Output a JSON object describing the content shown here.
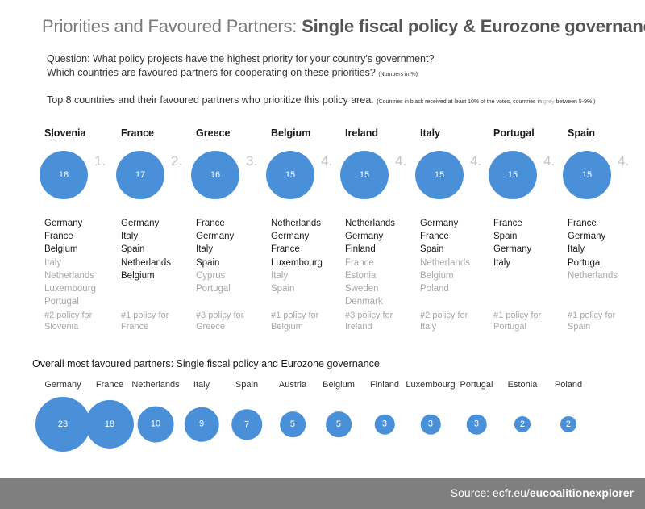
{
  "title": {
    "light": "Priorities and Favoured Partners:",
    "bold": "Single fiscal policy & Eurozone governance"
  },
  "question": {
    "line1": "Question: What policy projects have the highest priority for your country's government?",
    "line2": "Which countries are favoured partners for cooperating on these priorities?",
    "line2_note": "(Numbers in %)"
  },
  "top_line": {
    "text": "Top 8 countries and their favoured partners who prioritize this policy area.",
    "note_pre": "(Countries in black received at least 10% of the votes, countries in ",
    "note_grey": "grey",
    "note_post": " between 5-9%.)"
  },
  "colors": {
    "bubble": "#4a90d9",
    "grey_text": "#a8a8a8",
    "footer": "#7f7f7f"
  },
  "chart_data": [
    {
      "type": "bubble",
      "countries": [
        {
          "name": "Slovenia",
          "value": 18,
          "rank": "1.",
          "partners": [
            {
              "name": "Germany",
              "tier": "black"
            },
            {
              "name": "France",
              "tier": "black"
            },
            {
              "name": "Belgium",
              "tier": "black"
            },
            {
              "name": "Italy",
              "tier": "grey"
            },
            {
              "name": "Netherlands",
              "tier": "grey"
            },
            {
              "name": "Luxembourg",
              "tier": "grey"
            },
            {
              "name": "Portugal",
              "tier": "grey"
            }
          ],
          "policy_line1": "#2 policy for",
          "policy_line2": "Slovenia"
        },
        {
          "name": "France",
          "value": 17,
          "rank": "2.",
          "partners": [
            {
              "name": "Germany",
              "tier": "black"
            },
            {
              "name": "Italy",
              "tier": "black"
            },
            {
              "name": "Spain",
              "tier": "black"
            },
            {
              "name": "Netherlands",
              "tier": "black"
            },
            {
              "name": "Belgium",
              "tier": "black"
            }
          ],
          "policy_line1": "#1 policy for",
          "policy_line2": "France"
        },
        {
          "name": "Greece",
          "value": 16,
          "rank": "3.",
          "partners": [
            {
              "name": "France",
              "tier": "black"
            },
            {
              "name": "Germany",
              "tier": "black"
            },
            {
              "name": "Italy",
              "tier": "black"
            },
            {
              "name": "Spain",
              "tier": "black"
            },
            {
              "name": "Cyprus",
              "tier": "grey"
            },
            {
              "name": "Portugal",
              "tier": "grey"
            }
          ],
          "policy_line1": "#3 policy for",
          "policy_line2": "Greece"
        },
        {
          "name": "Belgium",
          "value": 15,
          "rank": "4.",
          "partners": [
            {
              "name": "Netherlands",
              "tier": "black"
            },
            {
              "name": "Germany",
              "tier": "black"
            },
            {
              "name": "France",
              "tier": "black"
            },
            {
              "name": "Luxembourg",
              "tier": "black"
            },
            {
              "name": "Italy",
              "tier": "grey"
            },
            {
              "name": "Spain",
              "tier": "grey"
            }
          ],
          "policy_line1": "#1 policy for",
          "policy_line2": "Belgium"
        },
        {
          "name": "Ireland",
          "value": 15,
          "rank": "4.",
          "partners": [
            {
              "name": "Netherlands",
              "tier": "black"
            },
            {
              "name": "Germany",
              "tier": "black"
            },
            {
              "name": "Finland",
              "tier": "black"
            },
            {
              "name": "France",
              "tier": "grey"
            },
            {
              "name": "Estonia",
              "tier": "grey"
            },
            {
              "name": "Sweden",
              "tier": "grey"
            },
            {
              "name": "Denmark",
              "tier": "grey"
            }
          ],
          "policy_line1": "#3 policy for",
          "policy_line2": "Ireland"
        },
        {
          "name": "Italy",
          "value": 15,
          "rank": "4.",
          "partners": [
            {
              "name": "Germany",
              "tier": "black"
            },
            {
              "name": "France",
              "tier": "black"
            },
            {
              "name": "Spain",
              "tier": "black"
            },
            {
              "name": "Netherlands",
              "tier": "grey"
            },
            {
              "name": "Belgium",
              "tier": "grey"
            },
            {
              "name": "Poland",
              "tier": "grey"
            }
          ],
          "policy_line1": "#2 policy for",
          "policy_line2": "Italy"
        },
        {
          "name": "Portugal",
          "value": 15,
          "rank": "4.",
          "partners": [
            {
              "name": "France",
              "tier": "black"
            },
            {
              "name": "Spain",
              "tier": "black"
            },
            {
              "name": "Germany",
              "tier": "black"
            },
            {
              "name": "Italy",
              "tier": "black"
            }
          ],
          "policy_line1": "#1 policy for",
          "policy_line2": "Portugal"
        },
        {
          "name": "Spain",
          "value": 15,
          "rank": "4.",
          "partners": [
            {
              "name": "France",
              "tier": "black"
            },
            {
              "name": "Germany",
              "tier": "black"
            },
            {
              "name": "Italy",
              "tier": "black"
            },
            {
              "name": "Portugal",
              "tier": "black"
            },
            {
              "name": "Netherlands",
              "tier": "grey"
            }
          ],
          "policy_line1": "#1 policy for",
          "policy_line2": "Spain"
        }
      ]
    },
    {
      "type": "bubble",
      "title": "Overall most favoured partners: Single fiscal policy and Eurozone governance",
      "categories": [
        "Germany",
        "France",
        "Netherlands",
        "Italy",
        "Spain",
        "Austria",
        "Belgium",
        "Finland",
        "Luxembourg",
        "Portugal",
        "Estonia",
        "Poland"
      ],
      "values": [
        23,
        18,
        10,
        9,
        7,
        5,
        5,
        3,
        3,
        3,
        2,
        2
      ]
    }
  ],
  "footer": {
    "prefix": "Source: ecfr.eu/",
    "bold": "eucoalitionexplorer"
  }
}
